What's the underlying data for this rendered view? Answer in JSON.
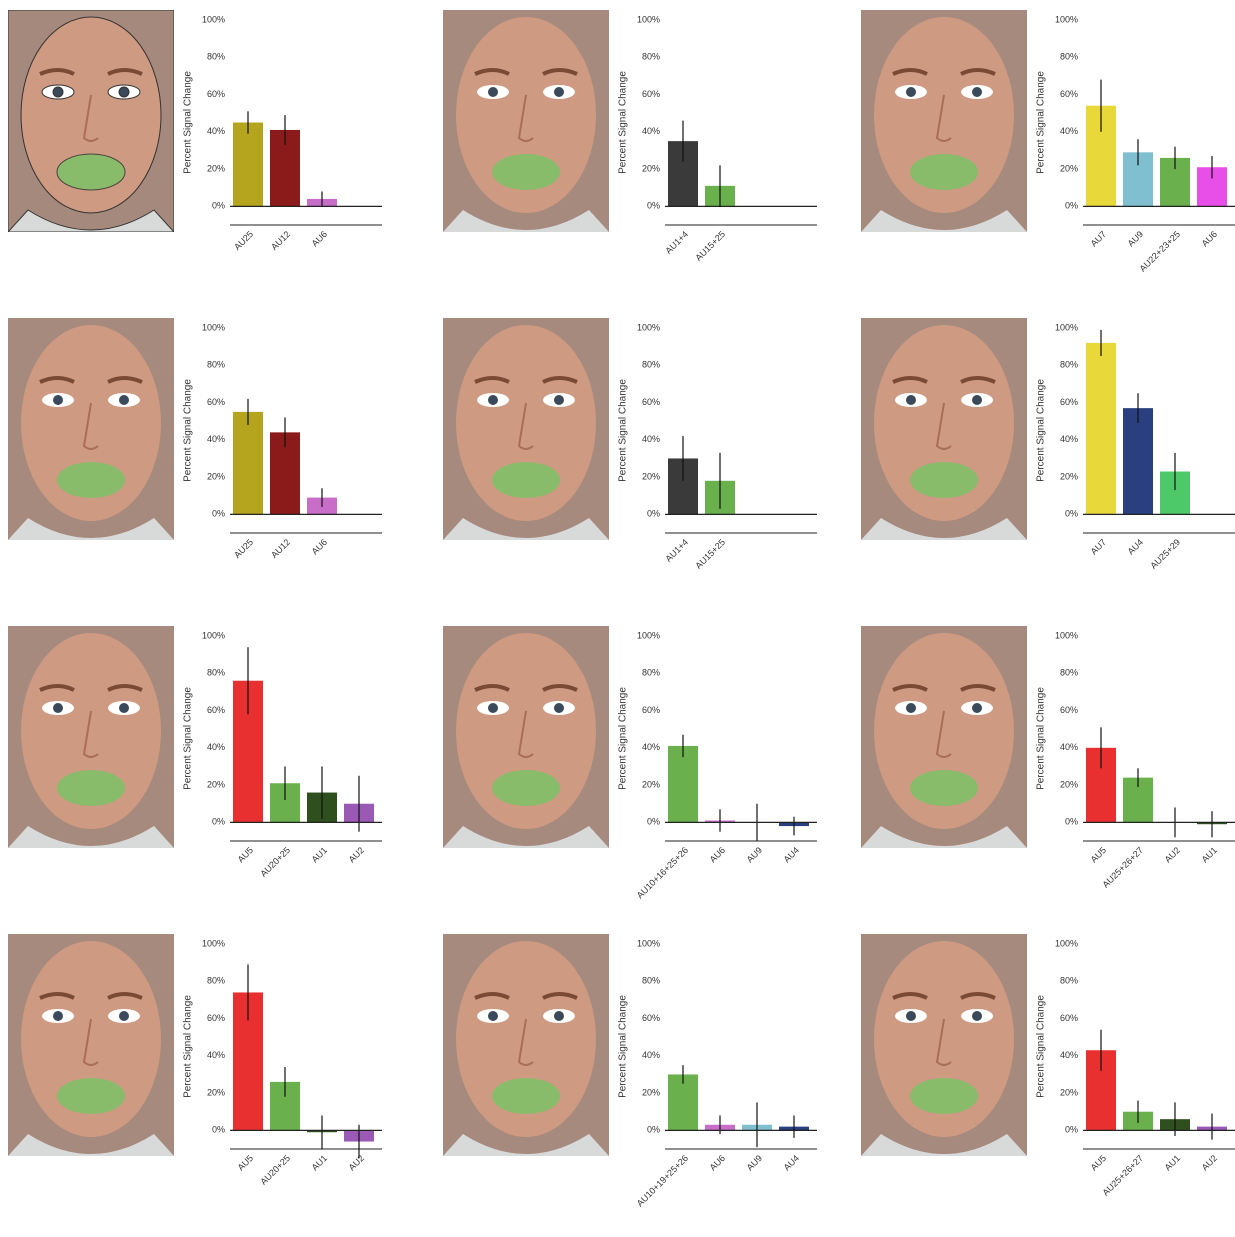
{
  "chart_data": [
    {
      "type": "bar",
      "y_label": "Percent Signal Change",
      "categories": [
        "AU25",
        "AU12",
        "AU6"
      ],
      "values": [
        45,
        41,
        4
      ],
      "errors": [
        6,
        8,
        4
      ],
      "colors": [
        "#b5a51e",
        "#8b1a1a",
        "#c86dc8"
      ],
      "ylim": [
        -10,
        100
      ],
      "yticks": [
        {
          "value": 0,
          "label": "0%"
        },
        {
          "value": 20,
          "label": "20%"
        },
        {
          "value": 40,
          "label": "40%"
        },
        {
          "value": 60,
          "label": "60%"
        },
        {
          "value": 80,
          "label": "80%"
        },
        {
          "value": 100,
          "label": "100%"
        }
      ]
    },
    {
      "type": "bar",
      "y_label": "Percent Signal Change",
      "categories": [
        "AU1+4",
        "AU15+25"
      ],
      "values": [
        35,
        11
      ],
      "errors": [
        11,
        11
      ],
      "colors": [
        "#3a3a3a",
        "#6ab04c"
      ],
      "ylim": [
        -10,
        100
      ],
      "yticks": [
        {
          "value": 0,
          "label": "0%"
        },
        {
          "value": 20,
          "label": "20%"
        },
        {
          "value": 40,
          "label": "40%"
        },
        {
          "value": 60,
          "label": "60%"
        },
        {
          "value": 80,
          "label": "80%"
        },
        {
          "value": 100,
          "label": "100%"
        }
      ]
    },
    {
      "type": "bar",
      "y_label": "Percent Signal Change",
      "categories": [
        "AU7",
        "AU9",
        "AU22+23+25",
        "AU6"
      ],
      "values": [
        54,
        29,
        26,
        21
      ],
      "errors": [
        14,
        7,
        6,
        6
      ],
      "colors": [
        "#e8d83a",
        "#7fbfcf",
        "#6ab04c",
        "#e84ee8"
      ],
      "ylim": [
        -10,
        100
      ],
      "yticks": [
        {
          "value": 0,
          "label": "0%"
        },
        {
          "value": 20,
          "label": "20%"
        },
        {
          "value": 40,
          "label": "40%"
        },
        {
          "value": 60,
          "label": "60%"
        },
        {
          "value": 80,
          "label": "80%"
        },
        {
          "value": 100,
          "label": "100%"
        }
      ]
    },
    {
      "type": "bar",
      "y_label": "Percent Signal Change",
      "categories": [
        "AU25",
        "AU12",
        "AU6"
      ],
      "values": [
        55,
        44,
        9
      ],
      "errors": [
        7,
        8,
        5
      ],
      "colors": [
        "#b5a51e",
        "#8b1a1a",
        "#c86dc8"
      ],
      "ylim": [
        -10,
        100
      ],
      "yticks": [
        {
          "value": 0,
          "label": "0%"
        },
        {
          "value": 20,
          "label": "20%"
        },
        {
          "value": 40,
          "label": "40%"
        },
        {
          "value": 60,
          "label": "60%"
        },
        {
          "value": 80,
          "label": "80%"
        },
        {
          "value": 100,
          "label": "100%"
        }
      ]
    },
    {
      "type": "bar",
      "y_label": "Percent Signal Change",
      "categories": [
        "AU1+4",
        "AU15+25"
      ],
      "values": [
        30,
        18
      ],
      "errors": [
        12,
        15
      ],
      "colors": [
        "#3a3a3a",
        "#6ab04c"
      ],
      "ylim": [
        -10,
        100
      ],
      "yticks": [
        {
          "value": 0,
          "label": "0%"
        },
        {
          "value": 20,
          "label": "20%"
        },
        {
          "value": 40,
          "label": "40%"
        },
        {
          "value": 60,
          "label": "60%"
        },
        {
          "value": 80,
          "label": "80%"
        },
        {
          "value": 100,
          "label": "100%"
        }
      ]
    },
    {
      "type": "bar",
      "y_label": "Percent Signal Change",
      "categories": [
        "AU7",
        "AU4",
        "AU25+29"
      ],
      "values": [
        92,
        57,
        23
      ],
      "errors": [
        7,
        8,
        10
      ],
      "colors": [
        "#e8d83a",
        "#2a3f7f",
        "#4dc96a"
      ],
      "ylim": [
        -10,
        100
      ],
      "yticks": [
        {
          "value": 0,
          "label": "0%"
        },
        {
          "value": 20,
          "label": "20%"
        },
        {
          "value": 40,
          "label": "40%"
        },
        {
          "value": 60,
          "label": "60%"
        },
        {
          "value": 80,
          "label": "80%"
        },
        {
          "value": 100,
          "label": "100%"
        }
      ]
    },
    {
      "type": "bar",
      "y_label": "Percent Signal Change",
      "categories": [
        "AU5",
        "AU20+25",
        "AU1",
        "AU2"
      ],
      "values": [
        76,
        21,
        16,
        10
      ],
      "errors": [
        18,
        9,
        14,
        15
      ],
      "colors": [
        "#e83030",
        "#6ab04c",
        "#2f4f1f",
        "#9b59b6"
      ],
      "ylim": [
        -10,
        100
      ],
      "yticks": [
        {
          "value": 0,
          "label": "0%"
        },
        {
          "value": 20,
          "label": "20%"
        },
        {
          "value": 40,
          "label": "40%"
        },
        {
          "value": 60,
          "label": "60%"
        },
        {
          "value": 80,
          "label": "80%"
        },
        {
          "value": 100,
          "label": "100%"
        }
      ]
    },
    {
      "type": "bar",
      "y_label": "Percent Signal Change",
      "categories": [
        "AU10+16+25+26",
        "AU6",
        "AU9",
        "AU4"
      ],
      "values": [
        41,
        1,
        0,
        -2
      ],
      "errors": [
        6,
        6,
        10,
        5
      ],
      "colors": [
        "#6ab04c",
        "#c86dc8",
        "#7fbfcf",
        "#2a3f7f"
      ],
      "ylim": [
        -10,
        100
      ],
      "yticks": [
        {
          "value": 0,
          "label": "0%"
        },
        {
          "value": 20,
          "label": "20%"
        },
        {
          "value": 40,
          "label": "40%"
        },
        {
          "value": 60,
          "label": "60%"
        },
        {
          "value": 80,
          "label": "80%"
        },
        {
          "value": 100,
          "label": "100%"
        }
      ]
    },
    {
      "type": "bar",
      "y_label": "Percent Signal Change",
      "categories": [
        "AU5",
        "AU25+26+27",
        "AU2",
        "AU1"
      ],
      "values": [
        40,
        24,
        0,
        -1
      ],
      "errors": [
        11,
        5,
        8,
        7
      ],
      "colors": [
        "#e83030",
        "#6ab04c",
        "#9b59b6",
        "#2f4f1f"
      ],
      "ylim": [
        -10,
        100
      ],
      "yticks": [
        {
          "value": 0,
          "label": "0%"
        },
        {
          "value": 20,
          "label": "20%"
        },
        {
          "value": 40,
          "label": "40%"
        },
        {
          "value": 60,
          "label": "60%"
        },
        {
          "value": 80,
          "label": "80%"
        },
        {
          "value": 100,
          "label": "100%"
        }
      ]
    },
    {
      "type": "bar",
      "y_label": "Percent Signal Change",
      "categories": [
        "AU5",
        "AU20+25",
        "AU1",
        "AU2"
      ],
      "values": [
        74,
        26,
        -1,
        -6
      ],
      "errors": [
        15,
        8,
        9,
        9
      ],
      "colors": [
        "#e83030",
        "#6ab04c",
        "#2f4f1f",
        "#9b59b6"
      ],
      "ylim": [
        -10,
        100
      ],
      "yticks": [
        {
          "value": 0,
          "label": "0%"
        },
        {
          "value": 20,
          "label": "20%"
        },
        {
          "value": 40,
          "label": "40%"
        },
        {
          "value": 60,
          "label": "60%"
        },
        {
          "value": 80,
          "label": "80%"
        },
        {
          "value": 100,
          "label": "100%"
        }
      ]
    },
    {
      "type": "bar",
      "y_label": "Percent Signal Change",
      "categories": [
        "AU10+19+25+26",
        "AU6",
        "AU9",
        "AU4"
      ],
      "values": [
        30,
        3,
        3,
        2
      ],
      "errors": [
        5,
        5,
        12,
        6
      ],
      "colors": [
        "#6ab04c",
        "#c86dc8",
        "#7fbfcf",
        "#2a3f7f"
      ],
      "ylim": [
        -10,
        100
      ],
      "yticks": [
        {
          "value": 0,
          "label": "0%"
        },
        {
          "value": 20,
          "label": "20%"
        },
        {
          "value": 40,
          "label": "40%"
        },
        {
          "value": 60,
          "label": "60%"
        },
        {
          "value": 80,
          "label": "80%"
        },
        {
          "value": 100,
          "label": "100%"
        }
      ]
    },
    {
      "type": "bar",
      "y_label": "Percent Signal Change",
      "categories": [
        "AU5",
        "AU25+26+27",
        "AU1",
        "AU2"
      ],
      "values": [
        43,
        10,
        6,
        2
      ],
      "errors": [
        11,
        6,
        9,
        7
      ],
      "colors": [
        "#e83030",
        "#6ab04c",
        "#2f4f1f",
        "#9b59b6"
      ],
      "ylim": [
        -10,
        100
      ],
      "yticks": [
        {
          "value": 0,
          "label": "0%"
        },
        {
          "value": 20,
          "label": "20%"
        },
        {
          "value": 40,
          "label": "40%"
        },
        {
          "value": 60,
          "label": "60%"
        },
        {
          "value": 80,
          "label": "80%"
        },
        {
          "value": 100,
          "label": "100%"
        }
      ]
    }
  ]
}
